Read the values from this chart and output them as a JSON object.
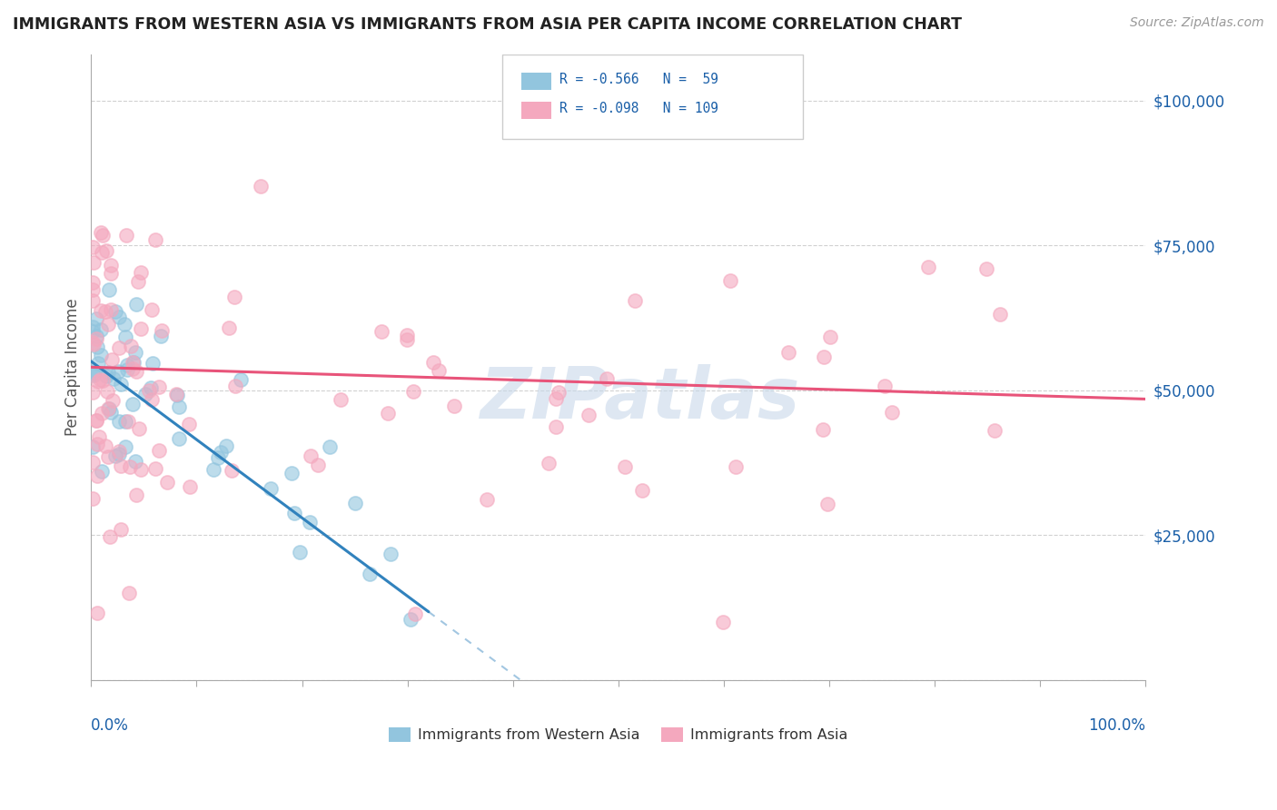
{
  "title": "IMMIGRANTS FROM WESTERN ASIA VS IMMIGRANTS FROM ASIA PER CAPITA INCOME CORRELATION CHART",
  "source": "Source: ZipAtlas.com",
  "ylabel": "Per Capita Income",
  "ytick_labels": [
    "",
    "$25,000",
    "$50,000",
    "$75,000",
    "$100,000"
  ],
  "ytick_vals": [
    0,
    25000,
    50000,
    75000,
    100000
  ],
  "legend_line1": "R = -0.566   N =  59",
  "legend_line2": "R = -0.098   N = 109",
  "blue_color": "#92c5de",
  "pink_color": "#f4a8be",
  "blue_line_color": "#3182bd",
  "pink_line_color": "#e8547a",
  "text_blue": "#1a5fa8",
  "watermark_color": "#c8d8ea",
  "background": "#ffffff",
  "grid_color": "#cccccc",
  "blue_intercept": 55000,
  "blue_slope": -1350,
  "pink_intercept": 54000,
  "pink_slope": -55,
  "seed": 12345
}
